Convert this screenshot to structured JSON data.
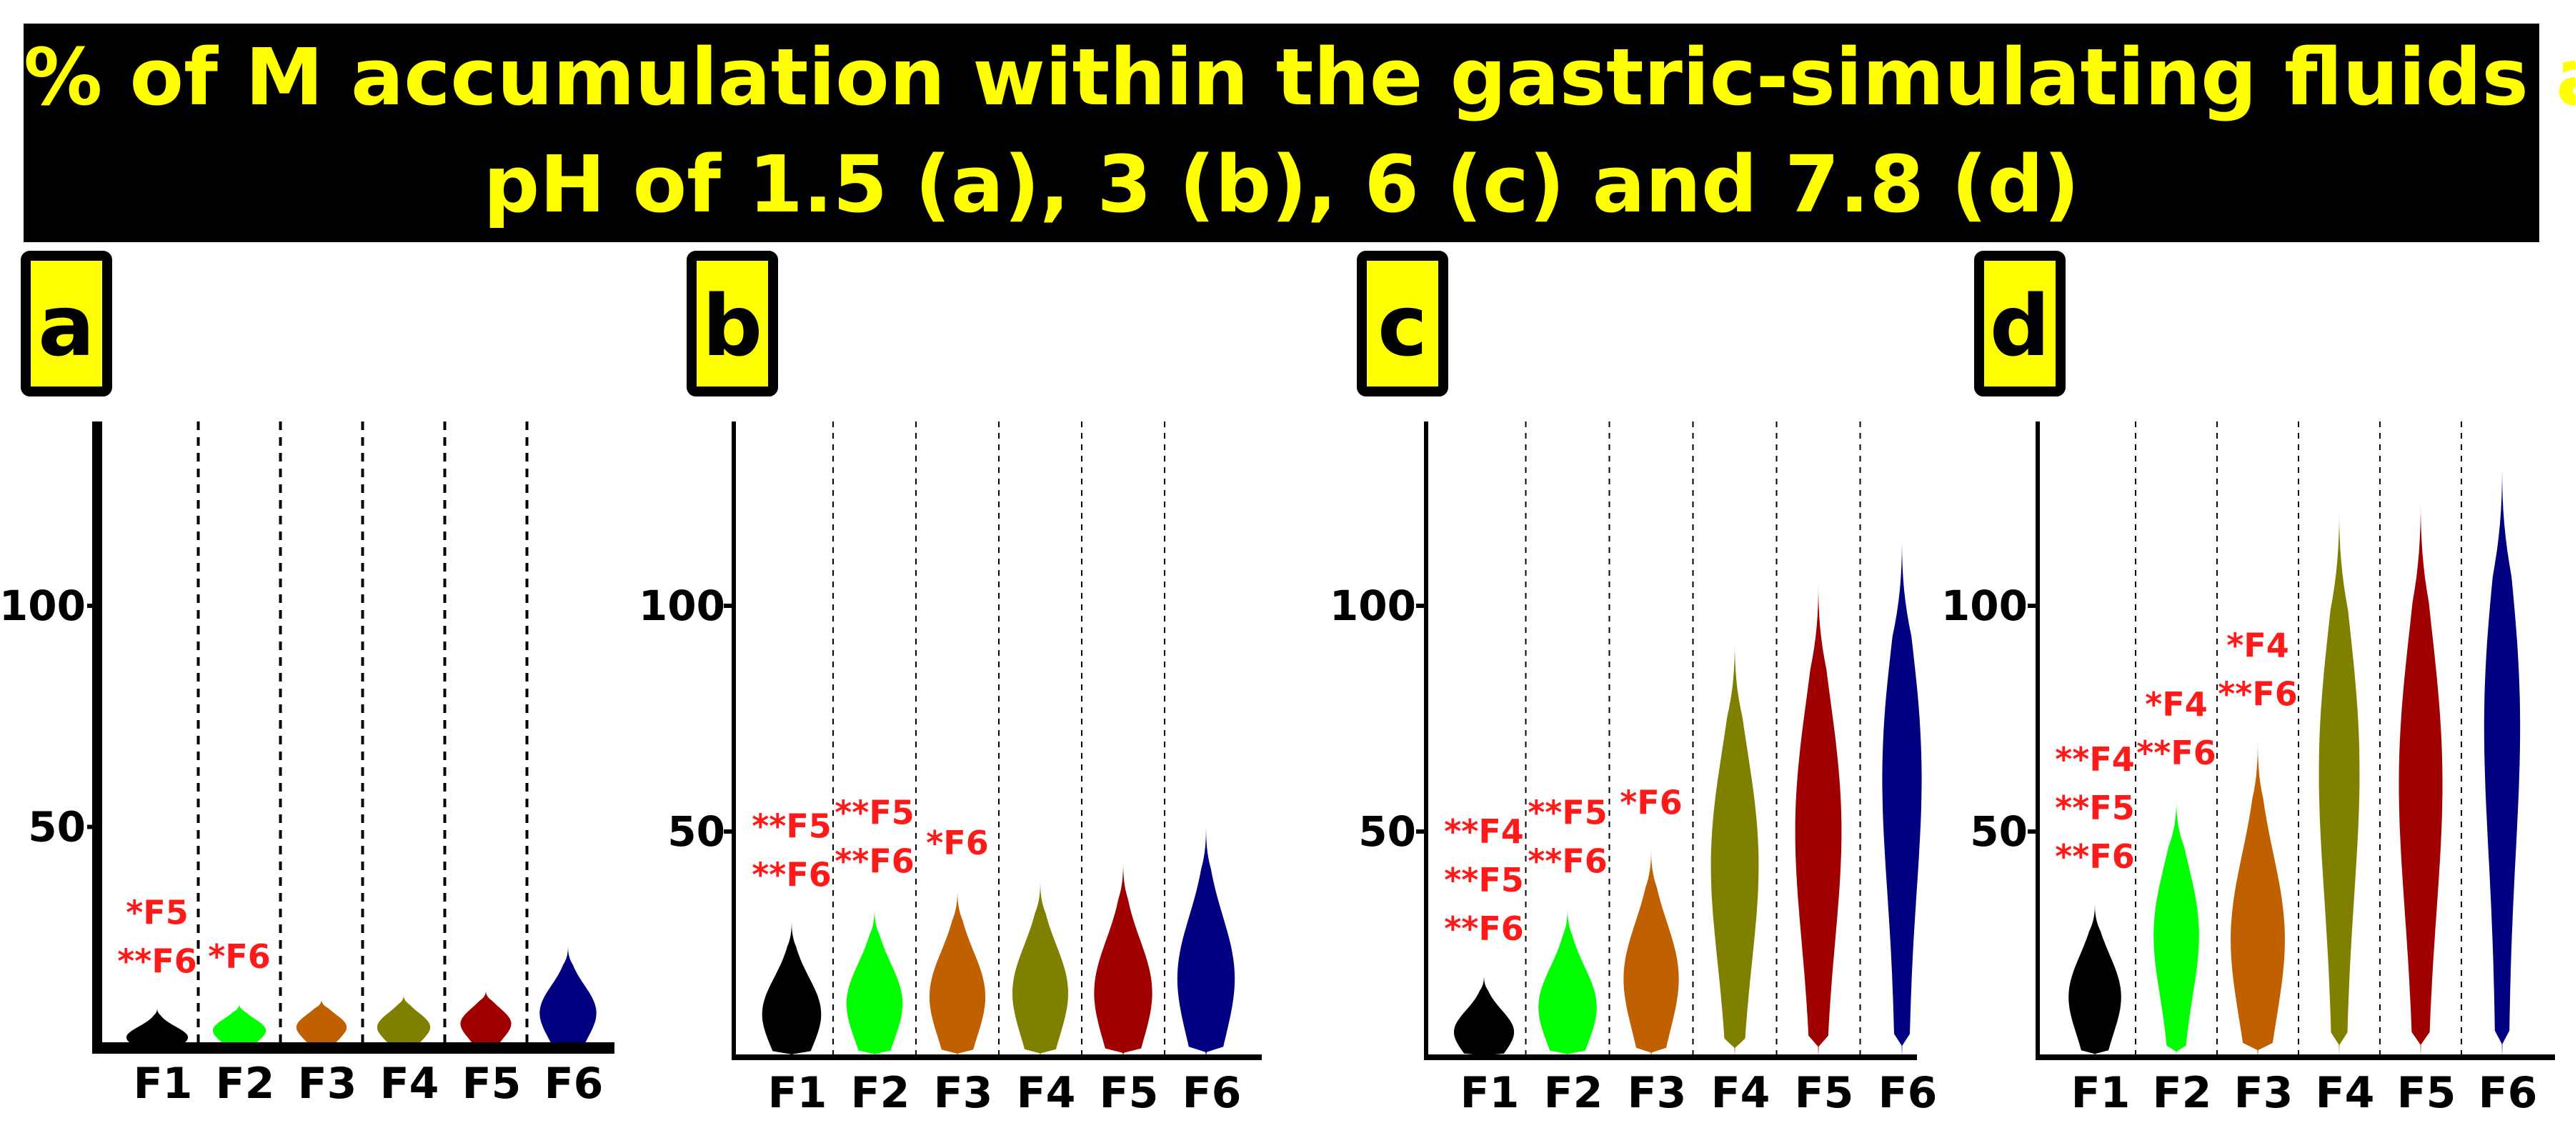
{
  "title": {
    "line1": "% of M accumulation within the gastric-simulating fluids at",
    "line2": "pH of 1.5 (a), 3 (b), 6 (c) and 7.8 (d)"
  },
  "colors": {
    "title_bg": "#000000",
    "title_text": "#ffff00",
    "badge_fill": "#ffff00",
    "significance": "#ff1a1a",
    "F1": "#000000",
    "F2": "#00ff00",
    "F3": "#c06000",
    "F4": "#808000",
    "F5": "#a00000",
    "F6": "#000080"
  },
  "chart_data": [
    {
      "type": "violin",
      "panel": "a",
      "condition": "pH 1.5",
      "categories": [
        "F1",
        "F2",
        "F3",
        "F4",
        "F5",
        "F6"
      ],
      "yticks": [
        50,
        100
      ],
      "ytick_labels": [
        "50",
        "100"
      ],
      "ylim": [
        0,
        140
      ],
      "series": [
        {
          "name": "F1",
          "min": 0,
          "max": 9,
          "median": 3
        },
        {
          "name": "F2",
          "min": 0,
          "max": 10,
          "median": 5
        },
        {
          "name": "F3",
          "min": 0,
          "max": 11,
          "median": 6
        },
        {
          "name": "F4",
          "min": 0,
          "max": 12,
          "median": 6
        },
        {
          "name": "F5",
          "min": 0,
          "max": 13,
          "median": 7
        },
        {
          "name": "F6",
          "min": 0,
          "max": 23,
          "median": 10
        }
      ],
      "annotations": [
        {
          "category": "F1",
          "lines": [
            "*F5",
            "**F6"
          ]
        },
        {
          "category": "F2",
          "lines": [
            "*F6"
          ]
        }
      ]
    },
    {
      "type": "violin",
      "panel": "b",
      "condition": "pH 3",
      "categories": [
        "F1",
        "F2",
        "F3",
        "F4",
        "F5",
        "F6"
      ],
      "yticks": [
        50,
        100
      ],
      "ytick_labels": [
        "50",
        "100"
      ],
      "ylim": [
        0,
        140
      ],
      "series": [
        {
          "name": "F1",
          "min": 0,
          "max": 30,
          "median": 12
        },
        {
          "name": "F2",
          "min": 0,
          "max": 33,
          "median": 15
        },
        {
          "name": "F3",
          "min": 0,
          "max": 37,
          "median": 17
        },
        {
          "name": "F4",
          "min": 0,
          "max": 39,
          "median": 18
        },
        {
          "name": "F5",
          "min": 0,
          "max": 43,
          "median": 18
        },
        {
          "name": "F6",
          "min": 0,
          "max": 51,
          "median": 22
        }
      ],
      "annotations": [
        {
          "category": "F1",
          "lines": [
            "**F5",
            "**F6"
          ]
        },
        {
          "category": "F2",
          "lines": [
            "**F5",
            "**F6"
          ]
        },
        {
          "category": "F3",
          "lines": [
            "*F6"
          ]
        }
      ]
    },
    {
      "type": "violin",
      "panel": "c",
      "condition": "pH 6",
      "categories": [
        "F1",
        "F2",
        "F3",
        "F4",
        "F5",
        "F6"
      ],
      "yticks": [
        50,
        100
      ],
      "ytick_labels": [
        "50",
        "100"
      ],
      "ylim": [
        0,
        140
      ],
      "series": [
        {
          "name": "F1",
          "min": 0,
          "max": 18,
          "median": 7
        },
        {
          "name": "F2",
          "min": 0,
          "max": 33,
          "median": 14
        },
        {
          "name": "F3",
          "min": 0,
          "max": 46,
          "median": 22
        },
        {
          "name": "F4",
          "min": 0,
          "max": 92,
          "median": 55
        },
        {
          "name": "F5",
          "min": 0,
          "max": 105,
          "median": 65
        },
        {
          "name": "F6",
          "min": 0,
          "max": 114,
          "median": 82
        }
      ],
      "annotations": [
        {
          "category": "F1",
          "lines": [
            "**F4",
            "**F5",
            "**F6"
          ]
        },
        {
          "category": "F2",
          "lines": [
            "**F5",
            "**F6"
          ]
        },
        {
          "category": "F3",
          "lines": [
            "*F6"
          ]
        }
      ]
    },
    {
      "type": "violin",
      "panel": "d",
      "condition": "pH 7.8",
      "categories": [
        "F1",
        "F2",
        "F3",
        "F4",
        "F5",
        "F6"
      ],
      "yticks": [
        50,
        100
      ],
      "ytick_labels": [
        "50",
        "100"
      ],
      "ylim": [
        0,
        140
      ],
      "series": [
        {
          "name": "F1",
          "min": 0,
          "max": 34,
          "median": 17
        },
        {
          "name": "F2",
          "min": 0,
          "max": 57,
          "median": 35
        },
        {
          "name": "F3",
          "min": 0,
          "max": 70,
          "median": 33
        },
        {
          "name": "F4",
          "min": 0,
          "max": 121,
          "median": 83
        },
        {
          "name": "F5",
          "min": 0,
          "max": 123,
          "median": 79
        },
        {
          "name": "F6",
          "min": 0,
          "max": 130,
          "median": 98
        }
      ],
      "annotations": [
        {
          "category": "F1",
          "lines": [
            "**F4",
            "**F5",
            "**F6"
          ]
        },
        {
          "category": "F2",
          "lines": [
            "*F4",
            "**F6"
          ]
        },
        {
          "category": "F3",
          "lines": [
            "*F4",
            "**F6"
          ]
        }
      ]
    }
  ]
}
